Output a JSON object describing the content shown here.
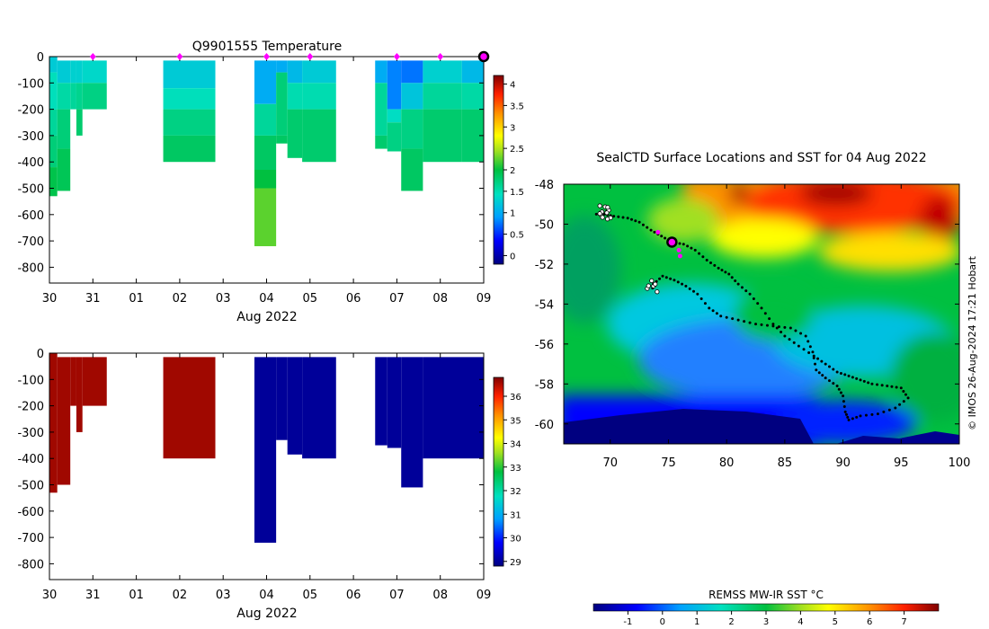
{
  "chart_data": [
    {
      "type": "heatmap",
      "title": "Q9901555  Temperature",
      "xlabel": "Aug 2022",
      "ylabel": "",
      "x_ticks": [
        "30",
        "31",
        "01",
        "02",
        "03",
        "04",
        "05",
        "06",
        "07",
        "08",
        "09"
      ],
      "y_ticks": [
        "0",
        "-100",
        "-200",
        "-300",
        "-400",
        "-500",
        "-600",
        "-700",
        "-800"
      ],
      "xlim": [
        0,
        10
      ],
      "ylim": [
        -860,
        0
      ],
      "colorbar": {
        "min": -0.2,
        "max": 4.2,
        "ticks": [
          "0",
          "0.5",
          "1",
          "1.5",
          "2",
          "2.5",
          "3",
          "3.5",
          "4"
        ]
      },
      "surface_markers": [
        1,
        3,
        5,
        6,
        8,
        9
      ],
      "current_marker": 10,
      "profiles": [
        {
          "x0": 0.0,
          "x1": 0.18,
          "depth": 530,
          "layers": [
            [
              0,
              60,
              1.25
            ],
            [
              60,
              200,
              1.45
            ],
            [
              200,
              300,
              1.6
            ],
            [
              300,
              420,
              1.75
            ],
            [
              420,
              530,
              1.95
            ]
          ]
        },
        {
          "x0": 0.18,
          "x1": 0.48,
          "depth": 510,
          "layers": [
            [
              15,
              100,
              1.25
            ],
            [
              100,
              200,
              1.55
            ],
            [
              200,
              350,
              1.75
            ],
            [
              350,
              510,
              1.9
            ]
          ]
        },
        {
          "x0": 0.48,
          "x1": 0.62,
          "depth": 200,
          "layers": [
            [
              15,
              100,
              1.3
            ],
            [
              100,
              200,
              1.6
            ]
          ]
        },
        {
          "x0": 0.62,
          "x1": 0.76,
          "depth": 300,
          "layers": [
            [
              15,
              100,
              1.3
            ],
            [
              100,
              200,
              1.65
            ],
            [
              200,
              300,
              1.8
            ]
          ]
        },
        {
          "x0": 0.76,
          "x1": 1.32,
          "depth": 200,
          "layers": [
            [
              15,
              100,
              1.35
            ],
            [
              100,
              200,
              1.7
            ]
          ]
        },
        {
          "x0": 2.62,
          "x1": 3.82,
          "depth": 400,
          "layers": [
            [
              15,
              120,
              1.25
            ],
            [
              120,
              200,
              1.45
            ],
            [
              200,
              300,
              1.7
            ],
            [
              300,
              400,
              1.85
            ]
          ]
        },
        {
          "x0": 4.72,
          "x1": 5.22,
          "depth": 720,
          "layers": [
            [
              15,
              180,
              1.0
            ],
            [
              180,
              300,
              1.6
            ],
            [
              300,
              430,
              1.85
            ],
            [
              430,
              500,
              2.0
            ],
            [
              500,
              720,
              2.25
            ]
          ]
        },
        {
          "x0": 5.22,
          "x1": 5.48,
          "depth": 330,
          "layers": [
            [
              15,
              60,
              1.0
            ],
            [
              60,
              300,
              1.75
            ],
            [
              300,
              330,
              1.85
            ]
          ]
        },
        {
          "x0": 5.48,
          "x1": 5.82,
          "depth": 385,
          "layers": [
            [
              15,
              100,
              1.1
            ],
            [
              100,
              200,
              1.5
            ],
            [
              200,
              385,
              1.8
            ]
          ]
        },
        {
          "x0": 5.82,
          "x1": 6.6,
          "depth": 400,
          "layers": [
            [
              15,
              100,
              1.25
            ],
            [
              100,
              200,
              1.5
            ],
            [
              200,
              400,
              1.8
            ]
          ]
        },
        {
          "x0": 7.5,
          "x1": 7.78,
          "depth": 350,
          "layers": [
            [
              15,
              100,
              1.0
            ],
            [
              100,
              300,
              1.6
            ],
            [
              300,
              350,
              1.8
            ]
          ]
        },
        {
          "x0": 7.78,
          "x1": 8.1,
          "depth": 360,
          "layers": [
            [
              15,
              200,
              0.8
            ],
            [
              200,
              250,
              1.4
            ],
            [
              250,
              360,
              1.7
            ]
          ]
        },
        {
          "x0": 8.1,
          "x1": 8.6,
          "depth": 510,
          "layers": [
            [
              15,
              100,
              0.75
            ],
            [
              100,
              200,
              1.2
            ],
            [
              200,
              350,
              1.7
            ],
            [
              350,
              510,
              1.85
            ]
          ]
        },
        {
          "x0": 8.6,
          "x1": 9.5,
          "depth": 400,
          "layers": [
            [
              15,
              100,
              1.3
            ],
            [
              100,
              200,
              1.6
            ],
            [
              200,
              400,
              1.8
            ]
          ]
        },
        {
          "x0": 9.5,
          "x1": 10.0,
          "depth": 400,
          "layers": [
            [
              15,
              100,
              1.1
            ],
            [
              100,
              200,
              1.55
            ],
            [
              200,
              400,
              1.8
            ]
          ]
        }
      ]
    },
    {
      "type": "heatmap",
      "title": "",
      "xlabel": "Aug 2022",
      "ylabel": "",
      "x_ticks": [
        "30",
        "31",
        "01",
        "02",
        "03",
        "04",
        "05",
        "06",
        "07",
        "08",
        "09"
      ],
      "y_ticks": [
        "0",
        "-100",
        "-200",
        "-300",
        "-400",
        "-500",
        "-600",
        "-700",
        "-800"
      ],
      "xlim": [
        0,
        10
      ],
      "ylim": [
        -860,
        0
      ],
      "colorbar": {
        "min": 28.8,
        "max": 36.8,
        "ticks": [
          "29",
          "30",
          "31",
          "32",
          "33",
          "34",
          "35",
          "36"
        ]
      },
      "profiles": [
        {
          "x0": 0.0,
          "x1": 0.18,
          "depth": 530,
          "layers": [
            [
              0,
              530,
              36.6
            ]
          ]
        },
        {
          "x0": 0.18,
          "x1": 0.48,
          "depth": 500,
          "layers": [
            [
              15,
              500,
              36.6
            ]
          ]
        },
        {
          "x0": 0.48,
          "x1": 0.62,
          "depth": 200,
          "layers": [
            [
              15,
              200,
              36.6
            ]
          ]
        },
        {
          "x0": 0.62,
          "x1": 0.76,
          "depth": 300,
          "layers": [
            [
              15,
              300,
              36.6
            ]
          ]
        },
        {
          "x0": 0.76,
          "x1": 1.32,
          "depth": 200,
          "layers": [
            [
              15,
              200,
              36.6
            ]
          ]
        },
        {
          "x0": 2.62,
          "x1": 3.82,
          "depth": 400,
          "layers": [
            [
              15,
              400,
              36.6
            ]
          ]
        },
        {
          "x0": 4.72,
          "x1": 5.22,
          "depth": 720,
          "layers": [
            [
              15,
              720,
              29.0
            ]
          ]
        },
        {
          "x0": 5.22,
          "x1": 5.48,
          "depth": 330,
          "layers": [
            [
              15,
              330,
              29.0
            ]
          ]
        },
        {
          "x0": 5.48,
          "x1": 5.82,
          "depth": 385,
          "layers": [
            [
              15,
              385,
              29.0
            ]
          ]
        },
        {
          "x0": 5.82,
          "x1": 6.6,
          "depth": 400,
          "layers": [
            [
              15,
              400,
              29.0
            ]
          ]
        },
        {
          "x0": 7.5,
          "x1": 7.78,
          "depth": 350,
          "layers": [
            [
              15,
              350,
              29.0
            ]
          ]
        },
        {
          "x0": 7.78,
          "x1": 8.1,
          "depth": 360,
          "layers": [
            [
              15,
              360,
              29.0
            ]
          ]
        },
        {
          "x0": 8.1,
          "x1": 8.6,
          "depth": 510,
          "layers": [
            [
              15,
              510,
              29.0
            ]
          ]
        },
        {
          "x0": 8.6,
          "x1": 10.0,
          "depth": 400,
          "layers": [
            [
              15,
              400,
              29.0
            ]
          ]
        }
      ]
    },
    {
      "type": "scatter",
      "title": "SealCTD Surface Locations and SST for 04 Aug 2022",
      "xlabel": "",
      "ylabel": "",
      "xlim": [
        66,
        100
      ],
      "ylim": [
        -61,
        -48
      ],
      "x_ticks": [
        "70",
        "75",
        "80",
        "85",
        "90",
        "95",
        "100"
      ],
      "y_ticks": [
        "-48",
        "-50",
        "-52",
        "-54",
        "-56",
        "-58",
        "-60"
      ],
      "colorbar_label": "REMSS MW-IR SST °C",
      "colorbar": {
        "min": -2,
        "max": 8,
        "ticks": [
          "-1",
          "0",
          "1",
          "2",
          "3",
          "4",
          "5",
          "6",
          "7"
        ]
      },
      "credit": "© IMOS 26-Aug-2024 17:21 Hobart",
      "track": [
        [
          68.8,
          -49.5
        ],
        [
          69.5,
          -49.5
        ],
        [
          70.3,
          -49.6
        ],
        [
          71.5,
          -49.7
        ],
        [
          72.5,
          -49.9
        ],
        [
          73.5,
          -50.3
        ],
        [
          74.4,
          -50.6
        ],
        [
          75.3,
          -50.9
        ],
        [
          76.3,
          -51.0
        ],
        [
          77.3,
          -51.3
        ],
        [
          78.3,
          -51.8
        ],
        [
          79.3,
          -52.2
        ],
        [
          80.2,
          -52.5
        ],
        [
          81.0,
          -53.0
        ],
        [
          82.0,
          -53.5
        ],
        [
          83.0,
          -54.2
        ],
        [
          84.0,
          -55.0
        ],
        [
          85.0,
          -55.6
        ],
        [
          86.2,
          -56.1
        ],
        [
          87.5,
          -56.6
        ],
        [
          88.5,
          -57.0
        ],
        [
          89.5,
          -57.4
        ],
        [
          90.5,
          -57.6
        ],
        [
          91.5,
          -57.8
        ],
        [
          92.5,
          -58.0
        ],
        [
          93.8,
          -58.1
        ],
        [
          95.0,
          -58.2
        ],
        [
          95.6,
          -58.7
        ],
        [
          94.5,
          -59.2
        ],
        [
          93.0,
          -59.5
        ],
        [
          91.5,
          -59.6
        ],
        [
          90.5,
          -59.8
        ],
        [
          90.2,
          -59.4
        ],
        [
          90.0,
          -58.6
        ],
        [
          89.5,
          -58.1
        ],
        [
          88.5,
          -57.7
        ],
        [
          87.7,
          -57.3
        ],
        [
          87.4,
          -56.4
        ],
        [
          86.8,
          -55.6
        ],
        [
          85.5,
          -55.2
        ],
        [
          84.0,
          -55.1
        ],
        [
          82.5,
          -55.0
        ],
        [
          81.0,
          -54.8
        ],
        [
          79.5,
          -54.6
        ],
        [
          78.5,
          -54.2
        ],
        [
          77.5,
          -53.5
        ],
        [
          76.5,
          -53.1
        ],
        [
          75.5,
          -52.8
        ],
        [
          74.5,
          -52.6
        ],
        [
          73.7,
          -53.0
        ],
        [
          73.6,
          -53.3
        ]
      ],
      "magenta_points": [
        [
          74.1,
          -50.4
        ],
        [
          75.9,
          -51.3
        ],
        [
          76.0,
          -51.6
        ]
      ],
      "current_position": [
        75.3,
        -50.9
      ],
      "start_cluster": [
        69.5,
        -49.4
      ],
      "end_cluster": [
        73.5,
        -53.1
      ]
    }
  ]
}
